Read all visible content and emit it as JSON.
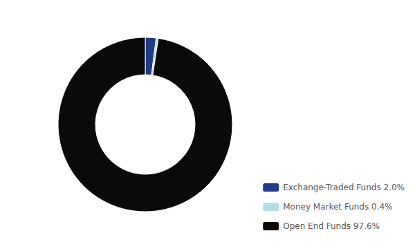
{
  "chart_data": {
    "type": "donut",
    "categories": [
      "Exchange-Traded Funds 2.0%",
      "Money Market Funds 0.4%",
      "Open End Funds 97.6%"
    ],
    "values": [
      2.0,
      0.4,
      97.6
    ],
    "colors": [
      "#1f3c88",
      "#b0e0e6",
      "#0a0a0a"
    ],
    "legend": "lower right"
  }
}
